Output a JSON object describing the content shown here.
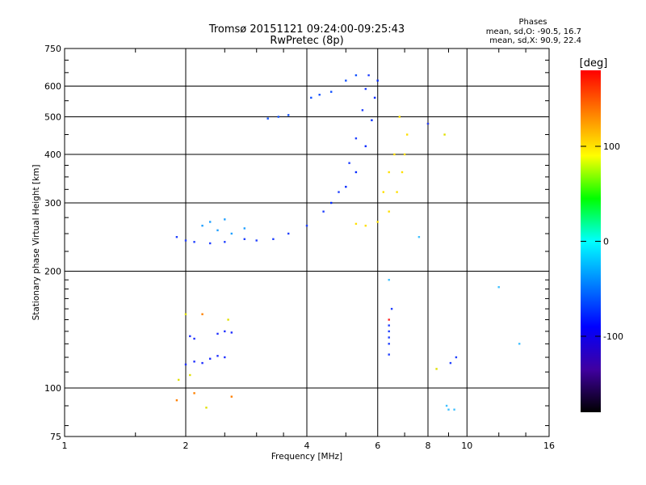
{
  "chart_data": {
    "type": "scatter",
    "title": "Tromsø 20151121 09:24:00-09:25:43",
    "subtitle": "RwPretec (8p)",
    "xlabel": "Frequency [MHz]",
    "ylabel": "Stationary phase Virtual Height [km]",
    "x_scale": "log",
    "y_scale": "log",
    "xlim": [
      1,
      16
    ],
    "ylim": [
      75,
      750
    ],
    "x_ticks": [
      1,
      2,
      4,
      6,
      8,
      10,
      16
    ],
    "y_ticks": [
      75,
      100,
      200,
      300,
      400,
      500,
      600,
      750
    ],
    "grid": true,
    "phase_stats": {
      "heading": "Phases",
      "line_o": "mean, sd,O: -90.5, 16.7",
      "line_x": "mean, sd,X:  90.9, 22.4"
    },
    "colorbar": {
      "label": "[deg]",
      "ticks": [
        "100",
        "0",
        "-100"
      ],
      "tick_values": [
        100,
        0,
        -100
      ],
      "range": [
        -180,
        180
      ],
      "colors": [
        "#ff0000",
        "#ff8000",
        "#ffff00",
        "#00ff00",
        "#00ffff",
        "#0080ff",
        "#0000ff",
        "#4000a0",
        "#000000"
      ]
    },
    "series": [
      {
        "name": "",
        "color": "#2040ff",
        "points": [
          [
            1.9,
            245
          ],
          [
            2.0,
            240
          ],
          [
            2.1,
            238
          ],
          [
            2.3,
            236
          ],
          [
            2.5,
            238
          ],
          [
            2.8,
            242
          ],
          [
            3.0,
            240
          ],
          [
            3.3,
            242
          ],
          [
            3.6,
            250
          ],
          [
            4.0,
            262
          ],
          [
            4.4,
            285
          ],
          [
            4.8,
            320
          ],
          [
            5.1,
            380
          ],
          [
            5.3,
            440
          ],
          [
            5.5,
            520
          ],
          [
            5.6,
            590
          ],
          [
            5.7,
            640
          ]
        ]
      },
      {
        "name": "",
        "color": "#1050ff",
        "points": [
          [
            3.2,
            495
          ],
          [
            3.4,
            500
          ],
          [
            3.6,
            505
          ],
          [
            4.1,
            560
          ],
          [
            4.3,
            570
          ],
          [
            4.6,
            580
          ],
          [
            5.0,
            620
          ],
          [
            5.3,
            640
          ]
        ]
      },
      {
        "name": "",
        "color": "#0028ff",
        "points": [
          [
            4.6,
            300
          ],
          [
            5.0,
            330
          ],
          [
            5.3,
            360
          ],
          [
            5.6,
            420
          ],
          [
            5.8,
            490
          ],
          [
            5.9,
            560
          ],
          [
            6.0,
            620
          ]
        ]
      },
      {
        "name": "",
        "color": "#20a0ff",
        "points": [
          [
            2.2,
            262
          ],
          [
            2.4,
            255
          ],
          [
            2.6,
            250
          ],
          [
            2.8,
            258
          ],
          [
            2.5,
            272
          ],
          [
            2.3,
            268
          ]
        ]
      },
      {
        "name": "",
        "color": "#ffe000",
        "points": [
          [
            5.3,
            265
          ],
          [
            5.6,
            262
          ],
          [
            6.0,
            268
          ],
          [
            6.4,
            285
          ],
          [
            6.7,
            320
          ],
          [
            6.9,
            360
          ],
          [
            7.0,
            400
          ],
          [
            7.1,
            450
          ],
          [
            6.6,
            400
          ],
          [
            6.4,
            360
          ],
          [
            6.2,
            320
          ],
          [
            6.8,
            500
          ]
        ]
      },
      {
        "name": "",
        "color": "#2030ff",
        "points": [
          [
            2.0,
            115
          ],
          [
            2.1,
            117
          ],
          [
            2.2,
            116
          ],
          [
            2.3,
            119
          ],
          [
            2.4,
            121
          ],
          [
            2.5,
            120
          ],
          [
            2.05,
            136
          ],
          [
            2.1,
            134
          ],
          [
            2.4,
            138
          ],
          [
            2.5,
            140
          ],
          [
            2.6,
            139
          ]
        ]
      },
      {
        "name": "",
        "color": "#ff8000",
        "points": [
          [
            1.9,
            93
          ],
          [
            2.1,
            97
          ],
          [
            2.2,
            155
          ],
          [
            2.6,
            95
          ],
          [
            8.0,
            480
          ]
        ]
      },
      {
        "name": "",
        "color": "#40c0ff",
        "points": [
          [
            6.4,
            190
          ],
          [
            12.0,
            182
          ],
          [
            9.0,
            88
          ],
          [
            9.3,
            88
          ],
          [
            8.9,
            90
          ],
          [
            7.6,
            245
          ],
          [
            13.5,
            130
          ]
        ]
      },
      {
        "name": "",
        "color": "#ff2020",
        "points": [
          [
            6.4,
            150
          ]
        ]
      },
      {
        "name": "",
        "color": "#2040ff",
        "points": [
          [
            6.4,
            145
          ],
          [
            6.4,
            140
          ],
          [
            6.4,
            135
          ],
          [
            6.4,
            130
          ],
          [
            6.4,
            122
          ],
          [
            6.5,
            160
          ],
          [
            9.4,
            120
          ],
          [
            9.1,
            116
          ],
          [
            8.0,
            480
          ]
        ]
      },
      {
        "name": "",
        "color": "#e0e000",
        "points": [
          [
            1.92,
            105
          ],
          [
            2.0,
            155
          ],
          [
            2.25,
            89
          ],
          [
            2.55,
            150
          ],
          [
            8.4,
            112
          ],
          [
            8.8,
            450
          ],
          [
            2.05,
            108
          ]
        ]
      }
    ]
  }
}
